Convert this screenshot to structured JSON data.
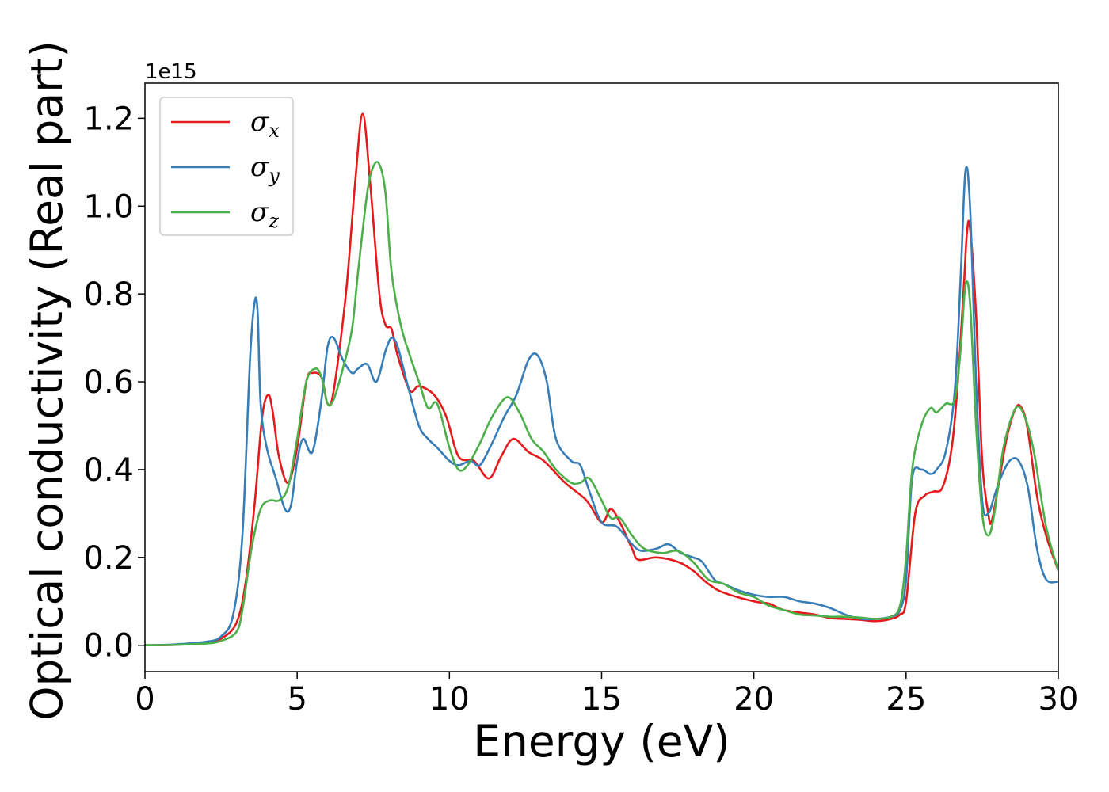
{
  "chart_data": {
    "type": "line",
    "title": "",
    "xlabel": "Energy (eV)",
    "ylabel": "Optical conductivity (Real part)",
    "y_offset_label": "1e15",
    "xlim": [
      0,
      30
    ],
    "ylim": [
      -0.06,
      1.28
    ],
    "x_ticks": [
      0,
      5,
      10,
      15,
      20,
      25,
      30
    ],
    "x_tick_labels": [
      "0",
      "5",
      "10",
      "15",
      "20",
      "25",
      "30"
    ],
    "y_ticks": [
      0.0,
      0.2,
      0.4,
      0.6,
      0.8,
      1.0,
      1.2
    ],
    "y_tick_labels": [
      "0.0",
      "0.2",
      "0.4",
      "0.6",
      "0.8",
      "1.0",
      "1.2"
    ],
    "grid": false,
    "legend_position": "top-left",
    "series": [
      {
        "name": "σx",
        "legend_symbol": "σ",
        "legend_subscript": "x",
        "color": "#e41a1c",
        "x": [
          0,
          1,
          2,
          2.5,
          3,
          3.3,
          3.6,
          3.85,
          4.05,
          4.2,
          4.4,
          4.7,
          5.0,
          5.3,
          5.5,
          5.8,
          6.0,
          6.2,
          6.6,
          6.9,
          7.15,
          7.4,
          7.7,
          7.9,
          8.1,
          8.3,
          8.7,
          9.0,
          9.5,
          9.9,
          10.3,
          10.8,
          11.3,
          11.7,
          12.1,
          12.6,
          13.1,
          13.8,
          14.5,
          15.0,
          15.3,
          15.6,
          16.0,
          16.2,
          16.8,
          17.5,
          18.0,
          18.5,
          19.0,
          20.0,
          20.5,
          21.0,
          22.0,
          22.5,
          23.0,
          23.5,
          24.0,
          24.5,
          24.8,
          25.0,
          25.3,
          25.6,
          25.9,
          26.2,
          26.5,
          26.7,
          26.9,
          27.0,
          27.1,
          27.3,
          27.5,
          27.7,
          27.8,
          28.0,
          28.3,
          28.6,
          28.8,
          29.0,
          29.3,
          29.6,
          30.0
        ],
        "y": [
          0.0,
          0.001,
          0.006,
          0.015,
          0.05,
          0.14,
          0.32,
          0.52,
          0.57,
          0.53,
          0.43,
          0.37,
          0.45,
          0.6,
          0.62,
          0.61,
          0.55,
          0.58,
          0.8,
          1.05,
          1.21,
          1.05,
          0.8,
          0.73,
          0.72,
          0.66,
          0.58,
          0.59,
          0.57,
          0.52,
          0.43,
          0.42,
          0.38,
          0.43,
          0.47,
          0.44,
          0.42,
          0.37,
          0.33,
          0.28,
          0.31,
          0.28,
          0.22,
          0.195,
          0.2,
          0.19,
          0.17,
          0.14,
          0.12,
          0.1,
          0.095,
          0.08,
          0.07,
          0.062,
          0.06,
          0.058,
          0.055,
          0.06,
          0.07,
          0.1,
          0.3,
          0.34,
          0.35,
          0.36,
          0.45,
          0.6,
          0.82,
          0.94,
          0.95,
          0.75,
          0.42,
          0.3,
          0.28,
          0.35,
          0.47,
          0.54,
          0.54,
          0.49,
          0.34,
          0.25,
          0.17
        ]
      },
      {
        "name": "σy",
        "legend_symbol": "σ",
        "legend_subscript": "y",
        "color": "#377eb8",
        "x": [
          0,
          1,
          2,
          2.5,
          2.9,
          3.2,
          3.45,
          3.6,
          3.7,
          3.8,
          4.0,
          4.3,
          4.6,
          4.8,
          5.0,
          5.2,
          5.5,
          5.8,
          6.0,
          6.2,
          6.5,
          6.8,
          7.0,
          7.3,
          7.6,
          7.9,
          8.1,
          8.3,
          8.6,
          9.0,
          9.3,
          9.6,
          10.0,
          10.3,
          10.7,
          11.0,
          11.4,
          11.8,
          12.2,
          12.6,
          12.9,
          13.2,
          13.5,
          14.0,
          14.3,
          14.6,
          15.0,
          15.5,
          16.0,
          16.3,
          16.8,
          17.2,
          17.6,
          18.0,
          18.3,
          18.7,
          19.0,
          19.5,
          20.0,
          20.5,
          21.0,
          21.5,
          22.0,
          22.5,
          23.0,
          23.5,
          24.0,
          24.5,
          24.8,
          25.0,
          25.2,
          25.5,
          25.8,
          26.0,
          26.3,
          26.6,
          26.8,
          26.95,
          27.1,
          27.3,
          27.5,
          27.7,
          27.9,
          28.1,
          28.4,
          28.7,
          29.0,
          29.3,
          29.6,
          30.0
        ],
        "y": [
          0.0,
          0.002,
          0.008,
          0.02,
          0.07,
          0.25,
          0.65,
          0.78,
          0.76,
          0.55,
          0.45,
          0.38,
          0.31,
          0.32,
          0.42,
          0.47,
          0.44,
          0.56,
          0.68,
          0.7,
          0.65,
          0.62,
          0.63,
          0.64,
          0.6,
          0.67,
          0.7,
          0.68,
          0.6,
          0.5,
          0.47,
          0.45,
          0.42,
          0.41,
          0.42,
          0.41,
          0.46,
          0.52,
          0.57,
          0.65,
          0.66,
          0.6,
          0.47,
          0.42,
          0.41,
          0.35,
          0.28,
          0.27,
          0.23,
          0.215,
          0.22,
          0.23,
          0.21,
          0.2,
          0.19,
          0.15,
          0.14,
          0.125,
          0.115,
          0.11,
          0.11,
          0.1,
          0.095,
          0.085,
          0.07,
          0.06,
          0.06,
          0.065,
          0.08,
          0.15,
          0.38,
          0.4,
          0.39,
          0.4,
          0.44,
          0.58,
          0.85,
          1.08,
          1.0,
          0.6,
          0.33,
          0.3,
          0.34,
          0.38,
          0.42,
          0.42,
          0.36,
          0.22,
          0.15,
          0.145
        ]
      },
      {
        "name": "σz",
        "legend_symbol": "σ",
        "legend_subscript": "z",
        "color": "#4daf4a",
        "x": [
          0,
          1,
          2,
          2.5,
          3,
          3.2,
          3.5,
          3.8,
          4.1,
          4.4,
          4.7,
          5.0,
          5.3,
          5.6,
          5.8,
          6.0,
          6.2,
          6.5,
          6.8,
          7.0,
          7.3,
          7.5,
          7.7,
          7.9,
          8.1,
          8.4,
          8.7,
          9.0,
          9.3,
          9.6,
          10.0,
          10.3,
          10.6,
          11.0,
          11.4,
          11.9,
          12.3,
          12.7,
          13.1,
          13.5,
          14.0,
          14.3,
          14.6,
          15.0,
          15.3,
          15.6,
          16.0,
          16.4,
          17.0,
          17.5,
          18.0,
          18.5,
          19.0,
          19.5,
          20.0,
          20.5,
          21.0,
          21.5,
          22.0,
          22.5,
          23.0,
          23.5,
          24.0,
          24.5,
          24.8,
          25.0,
          25.2,
          25.5,
          25.8,
          26.0,
          26.3,
          26.6,
          26.8,
          26.95,
          27.1,
          27.3,
          27.5,
          27.7,
          27.9,
          28.2,
          28.6,
          28.9,
          29.2,
          29.6,
          30.0
        ],
        "y": [
          0.0,
          0.001,
          0.004,
          0.01,
          0.03,
          0.08,
          0.22,
          0.31,
          0.33,
          0.33,
          0.36,
          0.47,
          0.6,
          0.63,
          0.61,
          0.55,
          0.56,
          0.63,
          0.72,
          0.85,
          1.03,
          1.09,
          1.095,
          1.03,
          0.85,
          0.73,
          0.66,
          0.6,
          0.54,
          0.55,
          0.45,
          0.4,
          0.41,
          0.46,
          0.52,
          0.565,
          0.53,
          0.47,
          0.44,
          0.4,
          0.37,
          0.37,
          0.38,
          0.33,
          0.29,
          0.29,
          0.25,
          0.22,
          0.21,
          0.215,
          0.19,
          0.15,
          0.14,
          0.12,
          0.11,
          0.09,
          0.08,
          0.07,
          0.068,
          0.065,
          0.065,
          0.063,
          0.06,
          0.065,
          0.09,
          0.2,
          0.4,
          0.5,
          0.54,
          0.53,
          0.55,
          0.56,
          0.68,
          0.82,
          0.78,
          0.5,
          0.3,
          0.25,
          0.3,
          0.45,
          0.54,
          0.52,
          0.44,
          0.27,
          0.17
        ]
      }
    ]
  }
}
